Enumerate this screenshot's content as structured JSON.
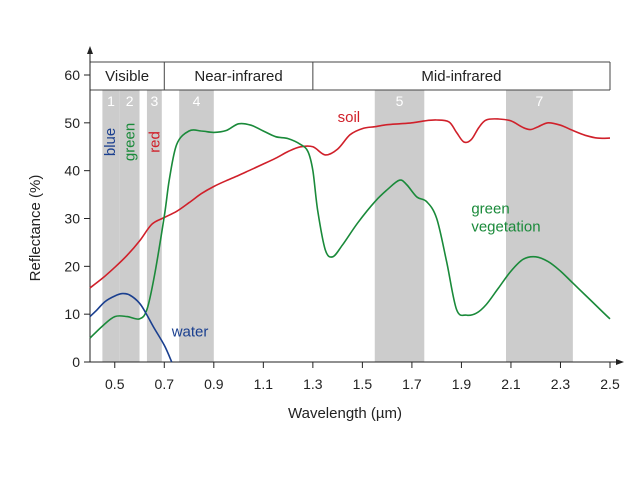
{
  "chart_data": {
    "type": "line",
    "xlabel": "Wavelength (µm)",
    "ylabel": "Reflectance (%)",
    "xlim": [
      0.4,
      2.5
    ],
    "ylim": [
      0,
      60
    ],
    "x_ticks": [
      0.5,
      0.7,
      0.9,
      1.1,
      1.3,
      1.5,
      1.7,
      1.9,
      2.1,
      2.3,
      2.5
    ],
    "x_tick_labels": [
      "0.5",
      "0.7",
      "0.9",
      "1.1",
      "1.3",
      "1.5",
      "1.7",
      "1.9",
      "2.1",
      "2.3",
      "2.5"
    ],
    "y_ticks": [
      0,
      10,
      20,
      30,
      40,
      50,
      60
    ],
    "y_tick_labels": [
      "0",
      "10",
      "20",
      "30",
      "40",
      "50",
      "60"
    ],
    "grid": false,
    "regions": [
      {
        "label": "Visible",
        "x0": 0.4,
        "x1": 0.7
      },
      {
        "label": "Near-infrared",
        "x0": 0.7,
        "x1": 1.3
      },
      {
        "label": "Mid-infrared",
        "x0": 1.3,
        "x1": 2.5
      }
    ],
    "bands": [
      {
        "label": "1",
        "x0": 0.45,
        "x1": 0.52
      },
      {
        "label": "2",
        "x0": 0.52,
        "x1": 0.6
      },
      {
        "label": "3",
        "x0": 0.63,
        "x1": 0.69
      },
      {
        "label": "4",
        "x0": 0.76,
        "x1": 0.9
      },
      {
        "label": "5",
        "x0": 1.55,
        "x1": 1.75
      },
      {
        "label": "7",
        "x0": 2.08,
        "x1": 2.35
      }
    ],
    "band_annotations": [
      {
        "text": "blue",
        "color": "#1a3f8f",
        "x": 0.48,
        "y": 46
      },
      {
        "text": "green",
        "color": "#1a8a3a",
        "x": 0.56,
        "y": 46
      },
      {
        "text": "red",
        "color": "#d0202a",
        "x": 0.66,
        "y": 46
      }
    ],
    "series": [
      {
        "name": "soil",
        "color": "#d0202a",
        "label_pos": [
          1.4,
          50.2
        ],
        "x": [
          0.4,
          0.45,
          0.5,
          0.55,
          0.6,
          0.65,
          0.7,
          0.75,
          0.8,
          0.85,
          0.9,
          0.95,
          1.0,
          1.05,
          1.1,
          1.15,
          1.2,
          1.25,
          1.3,
          1.35,
          1.4,
          1.45,
          1.5,
          1.55,
          1.6,
          1.65,
          1.7,
          1.75,
          1.8,
          1.85,
          1.88,
          1.91,
          1.94,
          1.97,
          2.0,
          2.05,
          2.1,
          2.15,
          2.18,
          2.21,
          2.25,
          2.3,
          2.35,
          2.4,
          2.45,
          2.5
        ],
        "y": [
          15.5,
          17.5,
          19.8,
          22.3,
          25.3,
          28.8,
          30.2,
          31.5,
          33.3,
          35.2,
          36.7,
          37.9,
          39.0,
          40.2,
          41.4,
          42.6,
          44.0,
          45.0,
          45.0,
          43.3,
          44.5,
          47.5,
          48.8,
          49.2,
          49.6,
          49.8,
          50.0,
          50.4,
          50.6,
          50.2,
          48.0,
          46.0,
          46.5,
          49.0,
          50.6,
          50.8,
          50.4,
          49.0,
          48.6,
          49.2,
          50.0,
          49.5,
          48.4,
          47.4,
          46.8,
          46.8
        ]
      },
      {
        "name": "green vegetation",
        "color": "#1a8a3a",
        "label_pos": [
          1.94,
          31.0
        ],
        "x": [
          0.4,
          0.45,
          0.5,
          0.55,
          0.6,
          0.63,
          0.66,
          0.7,
          0.72,
          0.75,
          0.8,
          0.85,
          0.9,
          0.95,
          1.0,
          1.05,
          1.1,
          1.15,
          1.2,
          1.25,
          1.28,
          1.3,
          1.32,
          1.35,
          1.38,
          1.42,
          1.48,
          1.55,
          1.6,
          1.65,
          1.68,
          1.72,
          1.76,
          1.8,
          1.84,
          1.88,
          1.92,
          1.96,
          2.0,
          2.05,
          2.1,
          2.15,
          2.2,
          2.25,
          2.3,
          2.35,
          2.4,
          2.45,
          2.5
        ],
        "y": [
          5.0,
          7.5,
          9.5,
          9.5,
          9.0,
          11.0,
          18.0,
          30.5,
          38.0,
          45.5,
          48.3,
          48.3,
          48.0,
          48.4,
          49.8,
          49.5,
          48.3,
          47.1,
          46.7,
          45.5,
          44.0,
          40.0,
          31.5,
          23.5,
          22.0,
          24.5,
          29.0,
          33.5,
          36.0,
          38.0,
          37.0,
          34.5,
          33.5,
          30.0,
          21.0,
          11.0,
          9.8,
          10.2,
          12.0,
          15.5,
          19.0,
          21.5,
          22.0,
          21.0,
          19.0,
          16.5,
          14.0,
          11.5,
          9.0
        ]
      },
      {
        "name": "water",
        "color": "#1a3f8f",
        "label_pos": [
          0.73,
          5.3
        ],
        "x": [
          0.4,
          0.43,
          0.46,
          0.5,
          0.53,
          0.56,
          0.6,
          0.63,
          0.66,
          0.7,
          0.73
        ],
        "y": [
          9.5,
          11.0,
          12.6,
          13.8,
          14.3,
          14.0,
          12.3,
          9.8,
          7.0,
          3.5,
          0.0
        ]
      }
    ]
  }
}
